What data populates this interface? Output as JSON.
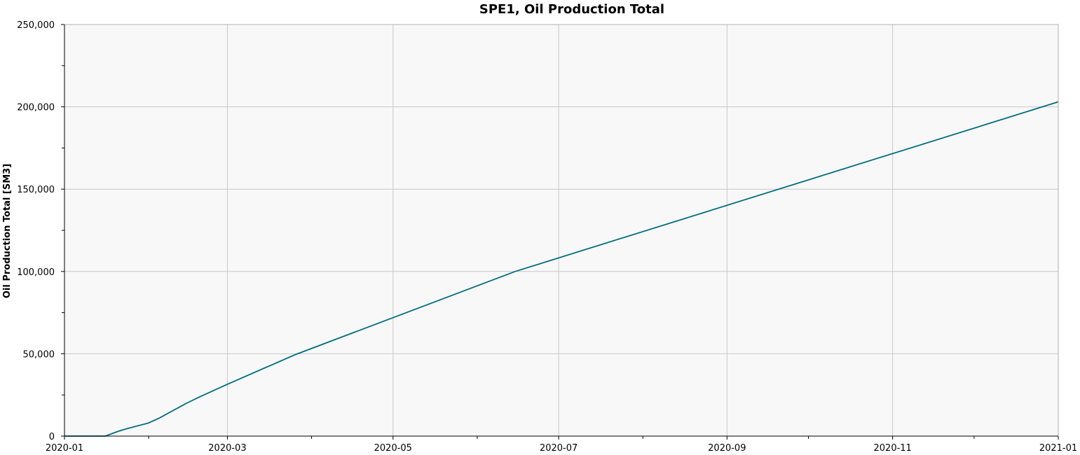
{
  "chart_data": {
    "type": "line",
    "title": "SPE1, Oil Production Total",
    "xlabel": "",
    "ylabel": "Oil Production Total [SM3]",
    "ylim": [
      0,
      250000
    ],
    "xlim": [
      "2020-01-01",
      "2021-01-01"
    ],
    "grid": true,
    "legend": "none",
    "line_color": "#006e80",
    "plot_background": "#f8f8f8",
    "x_ticks": [
      {
        "date": "2020-01-01",
        "label": "2020-01"
      },
      {
        "date": "2020-03-01",
        "label": "2020-03"
      },
      {
        "date": "2020-05-01",
        "label": "2020-05"
      },
      {
        "date": "2020-07-01",
        "label": "2020-07"
      },
      {
        "date": "2020-09-01",
        "label": "2020-09"
      },
      {
        "date": "2020-11-01",
        "label": "2020-11"
      },
      {
        "date": "2021-01-01",
        "label": "2021-01"
      }
    ],
    "x_minor_ticks": [
      "2020-02-01",
      "2020-04-01",
      "2020-06-01",
      "2020-08-01",
      "2020-10-01",
      "2020-12-01"
    ],
    "y_ticks": [
      {
        "value": 0,
        "label": "0"
      },
      {
        "value": 50000,
        "label": "50,000"
      },
      {
        "value": 100000,
        "label": "100,000"
      },
      {
        "value": 150000,
        "label": "150,000"
      },
      {
        "value": 200000,
        "label": "200,000"
      },
      {
        "value": 250000,
        "label": "250,000"
      }
    ],
    "y_minor_ticks": [
      25000,
      75000,
      125000,
      175000,
      225000
    ],
    "series": [
      {
        "x": [
          "2020-01-01",
          "2020-01-16",
          "2020-01-21",
          "2020-01-24",
          "2020-02-01",
          "2020-02-05",
          "2020-02-15",
          "2020-02-20",
          "2020-03-01",
          "2020-03-26",
          "2020-06-15",
          "2021-01-01"
        ],
        "y": [
          0,
          0,
          3000,
          4500,
          8000,
          11000,
          20000,
          24000,
          31500,
          49500,
          100000,
          203000
        ]
      }
    ]
  }
}
